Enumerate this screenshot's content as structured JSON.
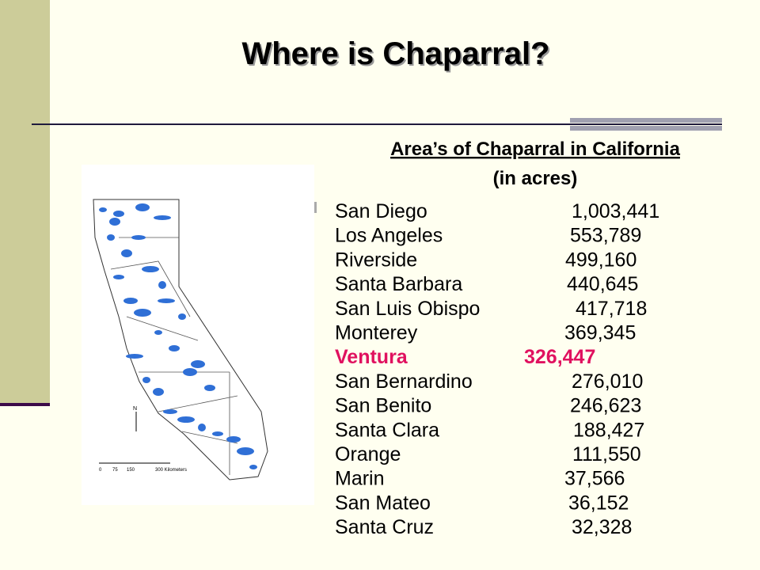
{
  "header": {
    "title": "Where is Chaparral?"
  },
  "table": {
    "caption": "Area’s of Chaparral in California",
    "unit": "(in acres)",
    "rows": [
      {
        "name": "San Diego",
        "value": "1,003,441"
      },
      {
        "name": "Los Angeles",
        "value": "553,789"
      },
      {
        "name": "Riverside",
        "value": "499,160"
      },
      {
        "name": "Santa Barbara",
        "value": "440,645"
      },
      {
        "name": "San Luis Obispo",
        "value": "417,718"
      },
      {
        "name": "Monterey",
        "value": "369,345"
      },
      {
        "name": "Ventura",
        "value": "326,447",
        "color": "#e0115f"
      },
      {
        "name": "San Bernardino",
        "value": "276,010"
      },
      {
        "name": "San Benito",
        "value": "246,623"
      },
      {
        "name": "Santa Clara",
        "value": "188,427"
      },
      {
        "name": "Orange",
        "value": "111,550"
      },
      {
        "name": "Marin",
        "value": "37,566"
      },
      {
        "name": "San Mateo",
        "value": "36,152"
      },
      {
        "name": "Santa Cruz",
        "value": "32,328"
      }
    ]
  },
  "map": {
    "scale_labels": [
      "0",
      "75",
      "150",
      "300 Kilometers"
    ],
    "north": "N"
  }
}
